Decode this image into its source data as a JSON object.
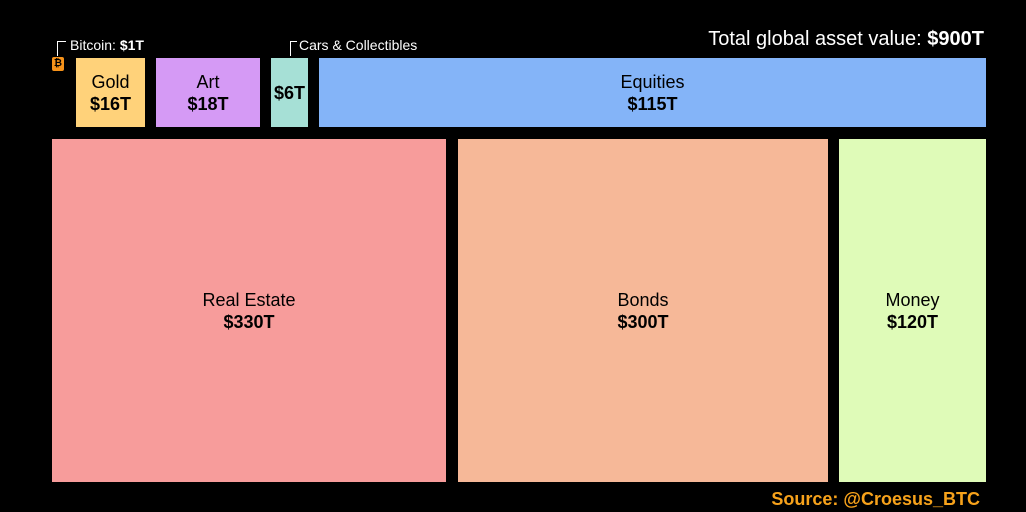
{
  "header": {
    "total_label": "Total global asset value:",
    "total_value": "$900T"
  },
  "chart_data": {
    "type": "treemap",
    "unit": "$T",
    "total": 900,
    "items": [
      {
        "name": "Bitcoin",
        "value": 1,
        "label": "Bitcoin:",
        "value_text": "$1T",
        "color": "#f7931a"
      },
      {
        "name": "Gold",
        "value": 16,
        "label": "Gold",
        "value_text": "$16T",
        "color": "#ffd27a"
      },
      {
        "name": "Art",
        "value": 18,
        "label": "Art",
        "value_text": "$18T",
        "color": "#d59af5"
      },
      {
        "name": "Cars & Collectibles",
        "value": 6,
        "label": "Cars & Collectibles",
        "value_text": "$6T",
        "color": "#a6e0d6"
      },
      {
        "name": "Equities",
        "value": 115,
        "label": "Equities",
        "value_text": "$115T",
        "color": "#84b4f8"
      },
      {
        "name": "Real Estate",
        "value": 330,
        "label": "Real Estate",
        "value_text": "$330T",
        "color": "#f79c9b"
      },
      {
        "name": "Bonds",
        "value": 300,
        "label": "Bonds",
        "value_text": "$300T",
        "color": "#f6b898"
      },
      {
        "name": "Money",
        "value": 120,
        "label": "Money",
        "value_text": "$120T",
        "color": "#dffbb8"
      }
    ]
  },
  "source": "Source: @Croesus_BTC",
  "icons": {
    "bitcoin": "bitcoin-icon"
  }
}
